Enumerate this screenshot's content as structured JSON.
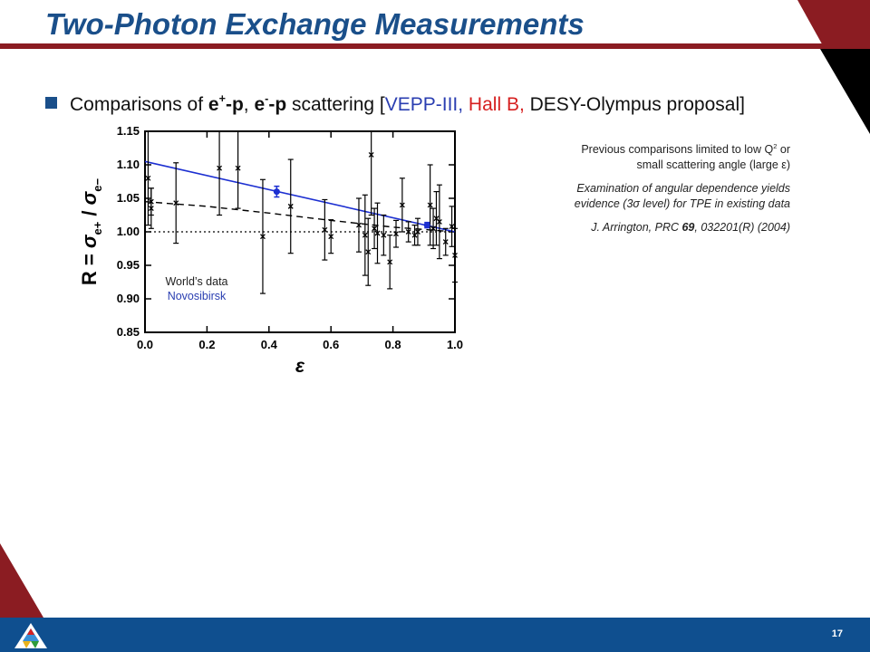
{
  "slide": {
    "title": "Two-Photon Exchange Measurements",
    "page_number": "17",
    "colors": {
      "title": "#1a4f8a",
      "banner_red": "#8b1c22",
      "footer": "#0f4f8f",
      "accent_blue": "#2a3eb1",
      "accent_red": "#d62020"
    }
  },
  "bullet": {
    "prefix": "Comparisons of ",
    "e": "e",
    "plus_sup": "+",
    "mid1": "-p",
    "sep": ", ",
    "minus_sup": "-",
    "mid2": "-p",
    "scattering": " scattering [",
    "vepp": "VEPP-III,",
    "hallb": " Hall B,",
    "desy": " DESY-Olympus proposal]"
  },
  "notes": {
    "n1a": "Previous comparisons limited to low Q",
    "n1sup": "2",
    "n1b": " or",
    "n1c": "small scattering angle (large ",
    "n1eps": "ε",
    "n1d": ")",
    "n2a": "Examination of angular dependence yields",
    "n2b": "evidence (3",
    "n2sigma": "σ",
    "n2c": " level) for TPE in existing data",
    "n3a": "J. Arrington, PRC ",
    "n3vol": "69",
    "n3b": ", 032201(R) (2004)"
  },
  "chart_data": {
    "type": "scatter",
    "xlabel": "ε",
    "ylabel_R": "R",
    "ylabel_eq": "=",
    "ylabel_sigma": "σ",
    "ylabel_sub_plus": "e+",
    "ylabel_slash": "/",
    "ylabel_sub_minus": "e−",
    "xlim": [
      0.0,
      1.0
    ],
    "ylim": [
      0.85,
      1.15
    ],
    "xticks": [
      "0.0",
      "0.2",
      "0.4",
      "0.6",
      "0.8",
      "1.0"
    ],
    "yticks": [
      "0.85",
      "0.90",
      "0.95",
      "1.00",
      "1.05",
      "1.10",
      "1.15"
    ],
    "legend": {
      "worlds_data": "World’s data",
      "novosibirsk": "Novosibirsk"
    },
    "fit_line": {
      "x": [
        0.0,
        1.0
      ],
      "y": [
        1.105,
        1.0
      ]
    },
    "dashed_curve": {
      "x": [
        0.0,
        0.2,
        0.4,
        0.6,
        0.8,
        1.0
      ],
      "y": [
        1.045,
        1.038,
        1.028,
        1.017,
        1.007,
        1.0
      ]
    },
    "reference_line": {
      "y": 1.0
    },
    "worlds_data": [
      {
        "x": 0.01,
        "y": 1.08,
        "err": 0.07
      },
      {
        "x": 0.02,
        "y": 1.035,
        "err": 0.03
      },
      {
        "x": 0.02,
        "y": 1.045,
        "err": 0.02
      },
      {
        "x": 0.1,
        "y": 1.043,
        "err": 0.06
      },
      {
        "x": 0.24,
        "y": 1.095,
        "err": 0.07
      },
      {
        "x": 0.3,
        "y": 1.095,
        "err": 0.06
      },
      {
        "x": 0.38,
        "y": 0.993,
        "err": 0.085
      },
      {
        "x": 0.47,
        "y": 1.038,
        "err": 0.07
      },
      {
        "x": 0.58,
        "y": 1.003,
        "err": 0.045
      },
      {
        "x": 0.6,
        "y": 0.993,
        "err": 0.025
      },
      {
        "x": 0.69,
        "y": 1.01,
        "err": 0.04
      },
      {
        "x": 0.71,
        "y": 0.995,
        "err": 0.06
      },
      {
        "x": 0.72,
        "y": 0.97,
        "err": 0.05
      },
      {
        "x": 0.73,
        "y": 1.115,
        "err": 0.09
      },
      {
        "x": 0.74,
        "y": 1.005,
        "err": 0.03
      },
      {
        "x": 0.75,
        "y": 0.998,
        "err": 0.045
      },
      {
        "x": 0.77,
        "y": 0.995,
        "err": 0.03
      },
      {
        "x": 0.79,
        "y": 0.955,
        "err": 0.04
      },
      {
        "x": 0.81,
        "y": 0.997,
        "err": 0.02
      },
      {
        "x": 0.83,
        "y": 1.04,
        "err": 0.04
      },
      {
        "x": 0.85,
        "y": 1.0,
        "err": 0.015
      },
      {
        "x": 0.87,
        "y": 0.995,
        "err": 0.015
      },
      {
        "x": 0.88,
        "y": 1.0,
        "err": 0.02
      },
      {
        "x": 0.92,
        "y": 1.04,
        "err": 0.06
      },
      {
        "x": 0.93,
        "y": 1.005,
        "err": 0.03
      },
      {
        "x": 0.94,
        "y": 1.02,
        "err": 0.04
      },
      {
        "x": 0.95,
        "y": 1.015,
        "err": 0.055
      },
      {
        "x": 0.97,
        "y": 0.985,
        "err": 0.02
      },
      {
        "x": 0.99,
        "y": 1.008,
        "err": 0.03
      },
      {
        "x": 1.0,
        "y": 0.965,
        "err": 0.04
      }
    ],
    "novosibirsk_data": [
      {
        "x": 0.425,
        "y": 1.06,
        "err": 0.008
      },
      {
        "x": 0.91,
        "y": 1.01,
        "err": 0.004
      }
    ]
  }
}
